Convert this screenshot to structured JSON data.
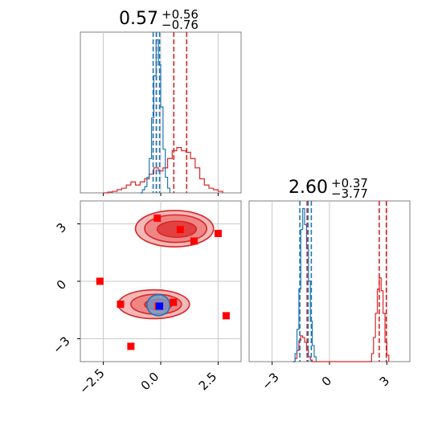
{
  "colors": {
    "red": "#d62728",
    "blue": "#1f77b4",
    "red_fill_light": "#f4b0b0",
    "red_fill_mid": "#ee8080",
    "red_fill_dark": "#e03a3a",
    "blue_fill": "#6aa6d6",
    "grid": "#c8c8c8",
    "frame": "#808080",
    "marker_red": "#ff0000",
    "marker_blue": "#0000ff"
  },
  "chart_data": [
    {
      "panel": "top-left",
      "type": "line",
      "title": {
        "main": "0.57",
        "sup": "+0.56",
        "sub": "−0.76"
      },
      "xlim": [
        -3.5,
        3.5
      ],
      "grid": true,
      "series": [
        {
          "color": "red",
          "style": "step",
          "x": [
            -2.5,
            -2.3,
            -2.1,
            -1.9,
            -1.7,
            -1.5,
            -1.3,
            -1.1,
            -0.9,
            -0.7,
            -0.5,
            -0.3,
            -0.1,
            0.1,
            0.3,
            0.5,
            0.7,
            0.9,
            1.1,
            1.3,
            1.5,
            1.7,
            1.9,
            2.1,
            2.3,
            2.5,
            2.7
          ],
          "y": [
            0.0,
            0.005,
            0.01,
            0.02,
            0.03,
            0.05,
            0.07,
            0.05,
            0.07,
            0.09,
            0.12,
            0.16,
            0.14,
            0.16,
            0.22,
            0.27,
            0.29,
            0.27,
            0.26,
            0.22,
            0.16,
            0.09,
            0.05,
            0.03,
            0.02,
            0.01,
            0.0
          ]
        },
        {
          "color": "blue",
          "style": "step",
          "x": [
            -0.9,
            -0.8,
            -0.7,
            -0.6,
            -0.5,
            -0.4,
            -0.3,
            -0.2,
            -0.1,
            0.0,
            0.1,
            0.2,
            0.3,
            0.4
          ],
          "y": [
            0.0,
            0.02,
            0.04,
            0.1,
            0.22,
            0.48,
            0.75,
            0.98,
            0.82,
            0.55,
            0.28,
            0.1,
            0.03,
            0.0
          ]
        }
      ],
      "vlines": [
        {
          "x": -0.19,
          "color": "red"
        },
        {
          "x": 0.57,
          "color": "red"
        },
        {
          "x": 1.13,
          "color": "red"
        },
        {
          "x": -0.33,
          "color": "blue"
        },
        {
          "x": -0.19,
          "color": "blue"
        },
        {
          "x": -0.05,
          "color": "blue"
        }
      ]
    },
    {
      "panel": "bottom-left",
      "type": "scatter",
      "xlim": [
        -3.5,
        3.5
      ],
      "ylim": [
        -4.2,
        4.2
      ],
      "xticks": [
        -2.5,
        0.0,
        2.5
      ],
      "xtick_labels": [
        "−2.5",
        "0.0",
        "2.5"
      ],
      "yticks": [
        -3,
        0,
        3
      ],
      "ytick_labels": [
        "−3",
        "0",
        "3"
      ],
      "grid": true,
      "contours": [
        {
          "cx": 0.6,
          "cy": 2.75,
          "rx": 1.7,
          "ry": 0.95,
          "level": "light"
        },
        {
          "cx": 0.65,
          "cy": 2.75,
          "rx": 1.35,
          "ry": 0.72,
          "level": "mid"
        },
        {
          "cx": 0.7,
          "cy": 2.72,
          "rx": 0.85,
          "ry": 0.42,
          "level": "dark"
        },
        {
          "cx": -0.3,
          "cy": -1.2,
          "rx": 1.55,
          "ry": 0.75,
          "level": "light"
        },
        {
          "cx": -0.2,
          "cy": -1.2,
          "rx": 1.1,
          "ry": 0.52,
          "level": "mid"
        },
        {
          "cx": -0.1,
          "cy": -1.22,
          "rx": 0.6,
          "ry": 0.28,
          "level": "dark"
        },
        {
          "cx": -0.1,
          "cy": -1.25,
          "rx": 0.5,
          "ry": 0.55,
          "level": "blue"
        }
      ],
      "markers_red": [
        {
          "x": -0.15,
          "y": 3.3
        },
        {
          "x": 0.85,
          "y": 2.7
        },
        {
          "x": 1.45,
          "y": 2.1
        },
        {
          "x": 2.5,
          "y": 2.5
        },
        {
          "x": -2.65,
          "y": 0.0
        },
        {
          "x": -1.75,
          "y": -1.2
        },
        {
          "x": 0.55,
          "y": -1.1
        },
        {
          "x": 2.85,
          "y": -1.8
        },
        {
          "x": -1.3,
          "y": -3.4
        },
        {
          "x": -0.1,
          "y": -1.3
        }
      ],
      "markers_blue": [
        {
          "x": -0.05,
          "y": -1.3
        }
      ]
    },
    {
      "panel": "bottom-right",
      "type": "line",
      "title": {
        "main": "2.60",
        "sup": "+0.37",
        "sub": "−3.77"
      },
      "xlim": [
        -4.2,
        4.2
      ],
      "xticks": [
        -3,
        0,
        3
      ],
      "xtick_labels": [
        "−3",
        "0",
        "3"
      ],
      "grid": true,
      "series": [
        {
          "color": "red",
          "style": "step",
          "x": [
            -1.9,
            -1.8,
            -1.7,
            -1.6,
            -1.5,
            -1.4,
            -1.3,
            -1.2,
            -1.1,
            -1.0,
            -0.9,
            2.1,
            2.2,
            2.3,
            2.4,
            2.5,
            2.6,
            2.7,
            2.8,
            2.9,
            3.0,
            3.1
          ],
          "y": [
            0.0,
            0.02,
            0.07,
            0.13,
            0.16,
            0.15,
            0.12,
            0.07,
            0.03,
            0.01,
            0.0,
            0.0,
            0.05,
            0.15,
            0.3,
            0.45,
            0.52,
            0.44,
            0.3,
            0.12,
            0.04,
            0.0
          ]
        },
        {
          "color": "blue",
          "style": "step",
          "x": [
            -1.9,
            -1.8,
            -1.7,
            -1.6,
            -1.5,
            -1.4,
            -1.3,
            -1.2,
            -1.1,
            -1.0,
            -0.9,
            -0.8,
            -0.7
          ],
          "y": [
            0.0,
            0.05,
            0.2,
            0.45,
            0.82,
            0.95,
            0.85,
            0.7,
            0.5,
            0.25,
            0.1,
            0.03,
            0.0
          ]
        }
      ],
      "vlines": [
        {
          "x": -1.17,
          "color": "red"
        },
        {
          "x": 2.6,
          "color": "red"
        },
        {
          "x": 2.97,
          "color": "red"
        },
        {
          "x": -1.55,
          "color": "blue"
        },
        {
          "x": -1.12,
          "color": "blue"
        },
        {
          "x": -0.95,
          "color": "blue"
        }
      ]
    }
  ]
}
